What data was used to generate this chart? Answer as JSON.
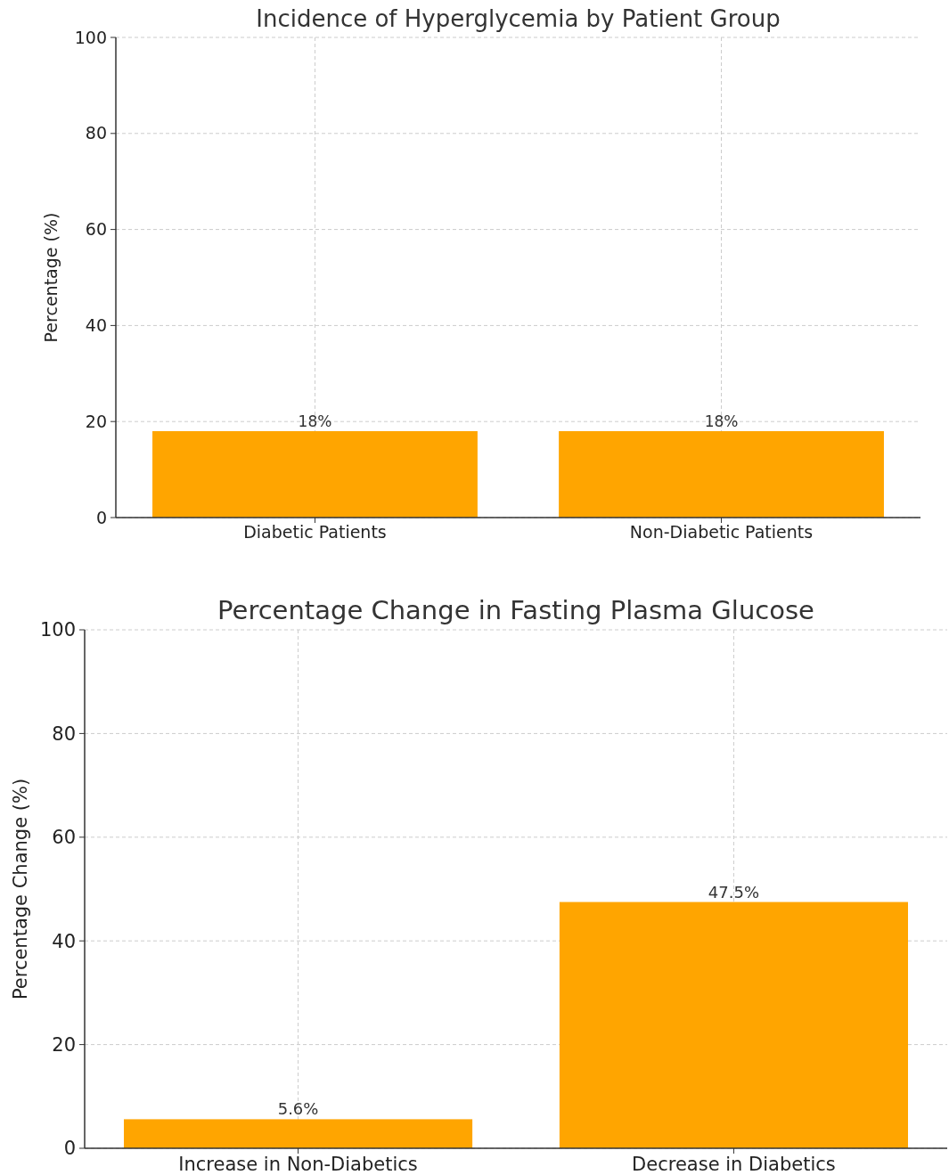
{
  "chart_data": [
    {
      "type": "bar",
      "title": "Incidence of Hyperglycemia by Patient Group",
      "ylabel": "Percentage (%)",
      "categories": [
        "Diabetic Patients",
        "Non-Diabetic Patients"
      ],
      "values": [
        18,
        18
      ],
      "color": "#ffa500",
      "value_labels": [
        "18%",
        "18%"
      ],
      "ylim": [
        0,
        100
      ],
      "yticks": [
        0,
        20,
        40,
        60,
        80,
        100
      ],
      "grid": true
    },
    {
      "type": "bar",
      "title": "Percentage Change in Fasting Plasma Glucose",
      "ylabel": "Percentage Change (%)",
      "categories": [
        "Increase in Non-Diabetics",
        "Decrease in Diabetics"
      ],
      "values": [
        5.6,
        47.5
      ],
      "color": "#ffa500",
      "value_labels": [
        "5.6%",
        "47.5%"
      ],
      "ylim": [
        0,
        100
      ],
      "yticks": [
        0,
        20,
        40,
        60,
        80,
        100
      ],
      "grid": true
    }
  ]
}
